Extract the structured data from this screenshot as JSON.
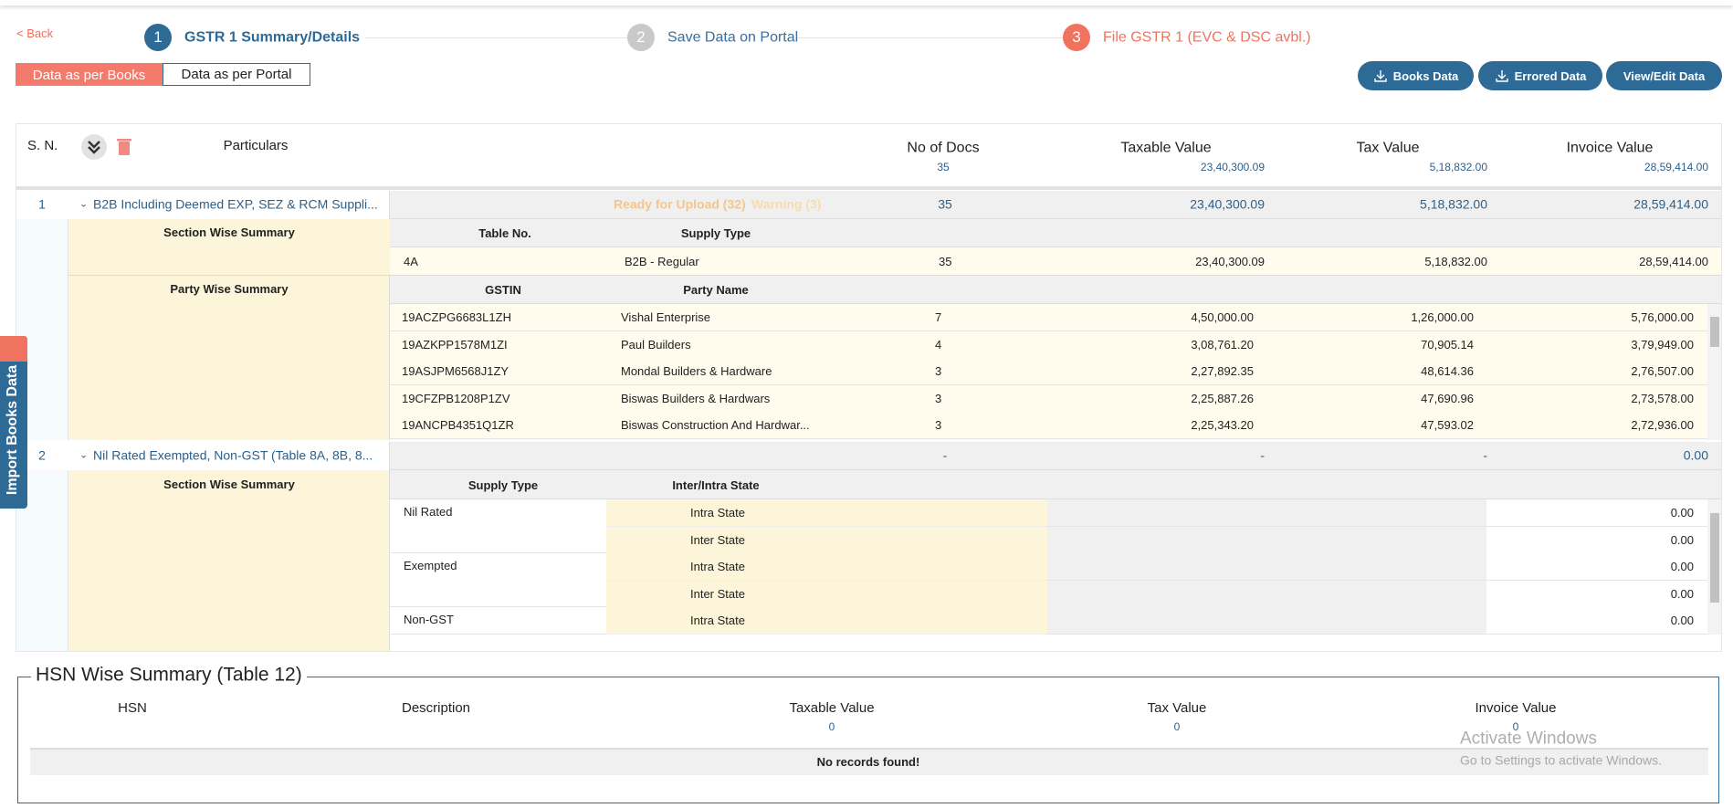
{
  "header": {
    "back": "< Back",
    "steps": [
      {
        "number": "1",
        "label": "GSTR 1 Summary/Details"
      },
      {
        "number": "2",
        "label": "Save Data on Portal"
      },
      {
        "number": "3",
        "label": "File GSTR 1 (EVC & DSC avbl.)"
      }
    ]
  },
  "tabs": [
    "Data as per Books",
    "Data as per Portal"
  ],
  "buttons": [
    "Books Data",
    "Errored Data",
    "View/Edit Data"
  ],
  "side_tab": "Import Books Data",
  "summary": {
    "columns": {
      "sn": "S. N.",
      "particulars": "Particulars",
      "docs": "No of Docs",
      "taxable": "Taxable Value",
      "tax": "Tax Value",
      "invoice": "Invoice Value"
    },
    "totals": {
      "docs": "35",
      "taxable": "23,40,300.09",
      "tax": "5,18,832.00",
      "invoice": "28,59,414.00"
    },
    "sections": [
      {
        "sn": "1",
        "title": "B2B Including Deemed EXP, SEZ & RCM Suppli...",
        "status": "Ready for Upload (32)",
        "warning": "Warning (3)",
        "docs": "35",
        "taxable": "23,40,300.09",
        "tax": "5,18,832.00",
        "invoice": "28,59,414.00",
        "section_wise": {
          "label": "Section Wise Summary",
          "headers": [
            "Table No.",
            "Supply Type"
          ],
          "rows": [
            {
              "table": "4A",
              "type": "B2B - Regular",
              "docs": "35",
              "taxable": "23,40,300.09",
              "tax": "5,18,832.00",
              "invoice": "28,59,414.00"
            }
          ]
        },
        "party_wise": {
          "label": "Party Wise Summary",
          "headers": [
            "GSTIN",
            "Party Name"
          ],
          "rows": [
            {
              "gstin": "19ACZPG6683L1ZH",
              "name": "Vishal Enterprise",
              "docs": "7",
              "taxable": "4,50,000.00",
              "tax": "1,26,000.00",
              "invoice": "5,76,000.00"
            },
            {
              "gstin": "19AZKPP1578M1ZI",
              "name": "Paul Builders",
              "docs": "4",
              "taxable": "3,08,761.20",
              "tax": "70,905.14",
              "invoice": "3,79,949.00"
            },
            {
              "gstin": "19ASJPM6568J1ZY",
              "name": "Mondal Builders & Hardware",
              "docs": "3",
              "taxable": "2,27,892.35",
              "tax": "48,614.36",
              "invoice": "2,76,507.00"
            },
            {
              "gstin": "19CFZPB1208P1ZV",
              "name": "Biswas Builders & Hardwars",
              "docs": "3",
              "taxable": "2,25,887.26",
              "tax": "47,690.96",
              "invoice": "2,73,578.00"
            },
            {
              "gstin": "19ANCPB4351Q1ZR",
              "name": "Biswas Construction And Hardwar...",
              "docs": "3",
              "taxable": "2,25,343.20",
              "tax": "47,593.02",
              "invoice": "2,72,936.00"
            }
          ]
        }
      },
      {
        "sn": "2",
        "title": "Nil Rated Exempted, Non-GST (Table 8A, 8B, 8...",
        "docs": "-",
        "taxable": "-",
        "tax": "-",
        "invoice": "0.00",
        "section_wise": {
          "label": "Section Wise Summary",
          "headers": [
            "Supply Type",
            "Inter/Intra State"
          ],
          "groups": [
            {
              "type": "Nil Rated",
              "rows": [
                {
                  "state": "Intra State",
                  "value": "0.00"
                },
                {
                  "state": "Inter State",
                  "value": "0.00"
                }
              ]
            },
            {
              "type": "Exempted",
              "rows": [
                {
                  "state": "Intra State",
                  "value": "0.00"
                },
                {
                  "state": "Inter State",
                  "value": "0.00"
                }
              ]
            },
            {
              "type": "Non-GST",
              "rows": [
                {
                  "state": "Intra State",
                  "value": "0.00"
                }
              ]
            }
          ]
        }
      }
    ]
  },
  "hsn": {
    "title": "HSN Wise Summary (Table 12)",
    "columns": {
      "hsn": "HSN",
      "description": "Description",
      "taxable": "Taxable Value",
      "tax": "Tax Value",
      "invoice": "Invoice Value"
    },
    "totals": {
      "taxable": "0",
      "tax": "0",
      "invoice": "0"
    },
    "empty": "No records found!"
  },
  "watermark": {
    "title": "Activate Windows",
    "subtitle": "Go to Settings to activate Windows."
  }
}
